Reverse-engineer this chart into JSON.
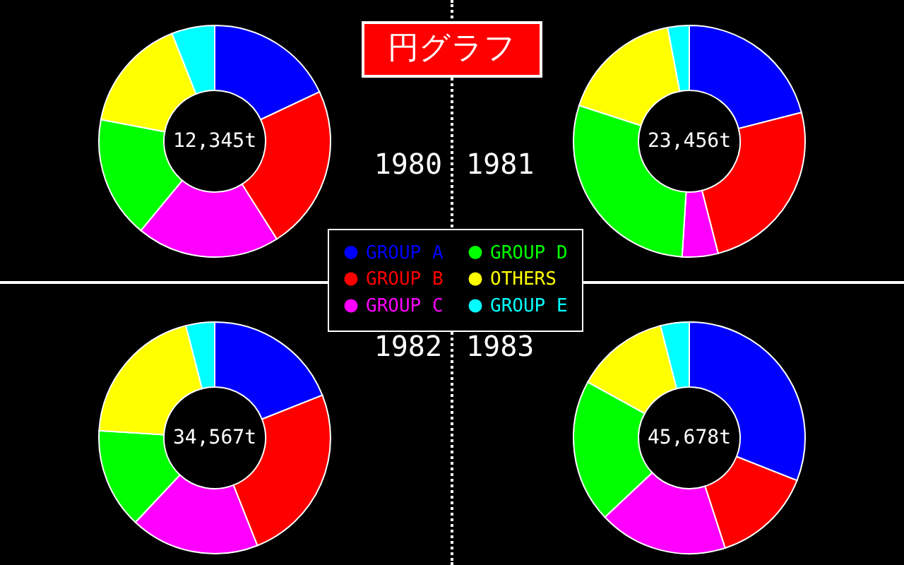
{
  "chart_data": [
    {
      "type": "other",
      "title": "円グラフ"
    },
    {
      "type": "donut",
      "title": "1980",
      "annotations": [
        "12,345t"
      ],
      "legend": "bottom right",
      "categories": [
        "GROUP A",
        "GROUP B",
        "GROUP C",
        "GROUP D",
        "OTHERS",
        "GROUP E"
      ],
      "values": [
        18,
        23,
        20,
        17,
        16,
        6
      ],
      "colors": [
        "#0000ff",
        "#ff0000",
        "#ff00ff",
        "#00ff00",
        "#ffff00",
        "#00ffff"
      ]
    },
    {
      "type": "donut",
      "title": "1981",
      "annotations": [
        "23,456t"
      ],
      "categories": [
        null,
        null,
        null,
        null,
        null,
        null
      ],
      "values": [
        21,
        25,
        5,
        29,
        17,
        3
      ],
      "colors": [
        "#0000ff",
        "#ff0000",
        "#ff00ff",
        "#00ff00",
        "#ffff00",
        "#00ffff"
      ]
    },
    {
      "type": "donut",
      "title": "1982",
      "annotations": [
        "34,567t"
      ],
      "categories": [
        null,
        null,
        null,
        null,
        null,
        null
      ],
      "values": [
        19,
        25,
        18,
        14,
        20,
        4
      ],
      "colors": [
        "#0000ff",
        "#ff0000",
        "#ff00ff",
        "#00ff00",
        "#ffff00",
        "#00ffff"
      ]
    },
    {
      "type": "donut",
      "title": "1983",
      "annotations": [
        "45,678t"
      ],
      "categories": [
        null,
        null,
        null,
        null,
        null,
        null
      ],
      "values": [
        31,
        14,
        18,
        20,
        13,
        4
      ],
      "colors": [
        "#0000ff",
        "#ff0000",
        "#ff00ff",
        "#00ff00",
        "#ffff00",
        "#00ffff"
      ]
    }
  ]
}
